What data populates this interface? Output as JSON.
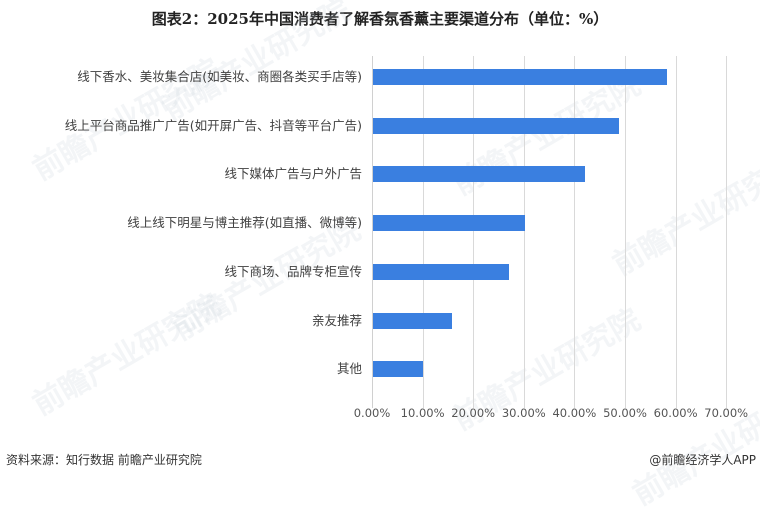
{
  "title": "图表2：2025年中国消费者了解香氛香薰主要渠道分布（单位：%）",
  "chart_data": {
    "type": "bar",
    "orientation": "horizontal",
    "title": "图表2：2025年中国消费者了解香氛香薰主要渠道分布（单位：%）",
    "xlabel": "",
    "ylabel": "",
    "categories": [
      "线下香水、美妆集合店(如美妆、商圈各类买手店等)",
      "线上平台商品推广广告(如开屏广告、抖音等平台广告)",
      "线下媒体广告与户外广告",
      "线上线下明星与博主推荐(如直播、微博等)",
      "线下商场、品牌专柜宣传",
      "亲友推荐",
      "其他"
    ],
    "values": [
      58.1,
      48.6,
      41.9,
      30.0,
      26.9,
      15.6,
      9.9
    ],
    "unit": "%",
    "xlim": [
      0,
      70
    ],
    "xticks": [
      "0.00%",
      "10.00%",
      "20.00%",
      "30.00%",
      "40.00%",
      "50.00%",
      "60.00%",
      "70.00%"
    ],
    "grid": true,
    "legend": null,
    "bar_color": "#3a7fe0"
  },
  "footer": {
    "source": "资料来源：知行数据  前瞻产业研究院",
    "credit": "@前瞻经济学人APP"
  },
  "watermark": {
    "text": "前瞻产业研究院"
  }
}
